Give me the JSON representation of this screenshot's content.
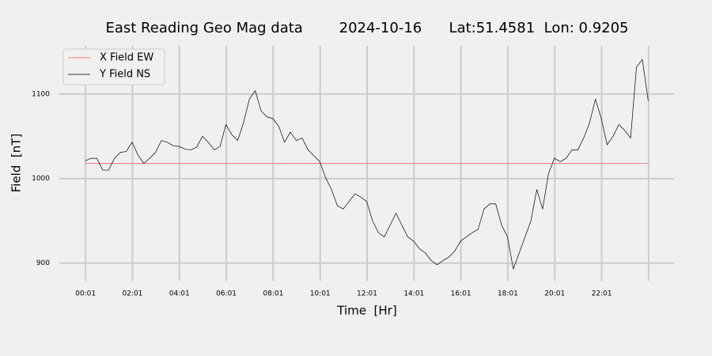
{
  "chart_data": {
    "type": "line",
    "title": "East Reading Geo Mag data        2024-10-16      Lat:51.4581  Lon: 0.9205",
    "x_label": "Time  [Hr]",
    "y_label": "Field  [nT]",
    "xlim": [
      -1.1,
      25.1
    ],
    "ylim": [
      879,
      1157
    ],
    "xticks": [
      {
        "value": 0.0167,
        "label": "00:01"
      },
      {
        "value": 2.0167,
        "label": "02:01"
      },
      {
        "value": 4.0167,
        "label": "04:01"
      },
      {
        "value": 6.0167,
        "label": "06:01"
      },
      {
        "value": 8.0167,
        "label": "08:01"
      },
      {
        "value": 10.0167,
        "label": "10:01"
      },
      {
        "value": 12.0167,
        "label": "12:01"
      },
      {
        "value": 14.0167,
        "label": "14:01"
      },
      {
        "value": 16.0167,
        "label": "16:01"
      },
      {
        "value": 18.0167,
        "label": "18:01"
      },
      {
        "value": 20.0167,
        "label": "20:01"
      },
      {
        "value": 22.0167,
        "label": "22:01"
      },
      {
        "value": 24.0167,
        "label": null
      }
    ],
    "yticks": [
      900,
      1000,
      1100
    ],
    "grid": true,
    "legend": "upper left",
    "series": [
      {
        "name": "X Field EW",
        "color": "#ff5555",
        "x": [
          0,
          24
        ],
        "values": [
          1018,
          1018
        ]
      },
      {
        "name": "Y Field NS",
        "color": "#000000",
        "x": [
          0,
          0.25,
          0.5,
          0.75,
          1,
          1.25,
          1.5,
          1.75,
          2,
          2.25,
          2.5,
          2.75,
          3,
          3.25,
          3.5,
          3.75,
          4,
          4.25,
          4.5,
          4.75,
          5,
          5.25,
          5.5,
          5.75,
          6,
          6.25,
          6.5,
          6.75,
          7,
          7.25,
          7.5,
          7.75,
          8,
          8.25,
          8.5,
          8.75,
          9,
          9.25,
          9.5,
          9.75,
          10,
          10.25,
          10.5,
          10.75,
          11,
          11.25,
          11.5,
          11.75,
          12,
          12.25,
          12.5,
          12.75,
          13,
          13.25,
          13.5,
          13.75,
          14,
          14.25,
          14.5,
          14.75,
          15,
          15.25,
          15.5,
          15.75,
          16,
          16.25,
          16.5,
          16.75,
          17,
          17.25,
          17.5,
          17.75,
          18,
          18.25,
          18.5,
          18.75,
          19,
          19.25,
          19.5,
          19.75,
          20,
          20.25,
          20.5,
          20.75,
          21,
          21.25,
          21.5,
          21.75,
          22,
          22.25,
          22.5,
          22.75,
          23,
          23.25,
          23.5,
          23.75,
          24
        ],
        "values": [
          1021,
          1024,
          1024,
          1010,
          1010,
          1024,
          1031,
          1032,
          1043,
          1028,
          1018,
          1024,
          1031,
          1045,
          1043,
          1039,
          1038,
          1035,
          1034,
          1037,
          1050,
          1043,
          1034,
          1038,
          1064,
          1052,
          1045,
          1066,
          1094,
          1104,
          1080,
          1073,
          1071,
          1062,
          1043,
          1055,
          1045,
          1048,
          1034,
          1027,
          1020,
          1001,
          987,
          968,
          964,
          973,
          982,
          978,
          973,
          950,
          936,
          931,
          945,
          959,
          945,
          931,
          926,
          917,
          912,
          903,
          898,
          903,
          907,
          914,
          926,
          931,
          936,
          940,
          964,
          970,
          970,
          945,
          931,
          893,
          912,
          931,
          950,
          987,
          964,
          1006,
          1024,
          1020,
          1024,
          1034,
          1034,
          1048,
          1066,
          1094,
          1071,
          1040,
          1050,
          1064,
          1057,
          1048,
          1132,
          1141,
          1092
        ]
      }
    ]
  }
}
